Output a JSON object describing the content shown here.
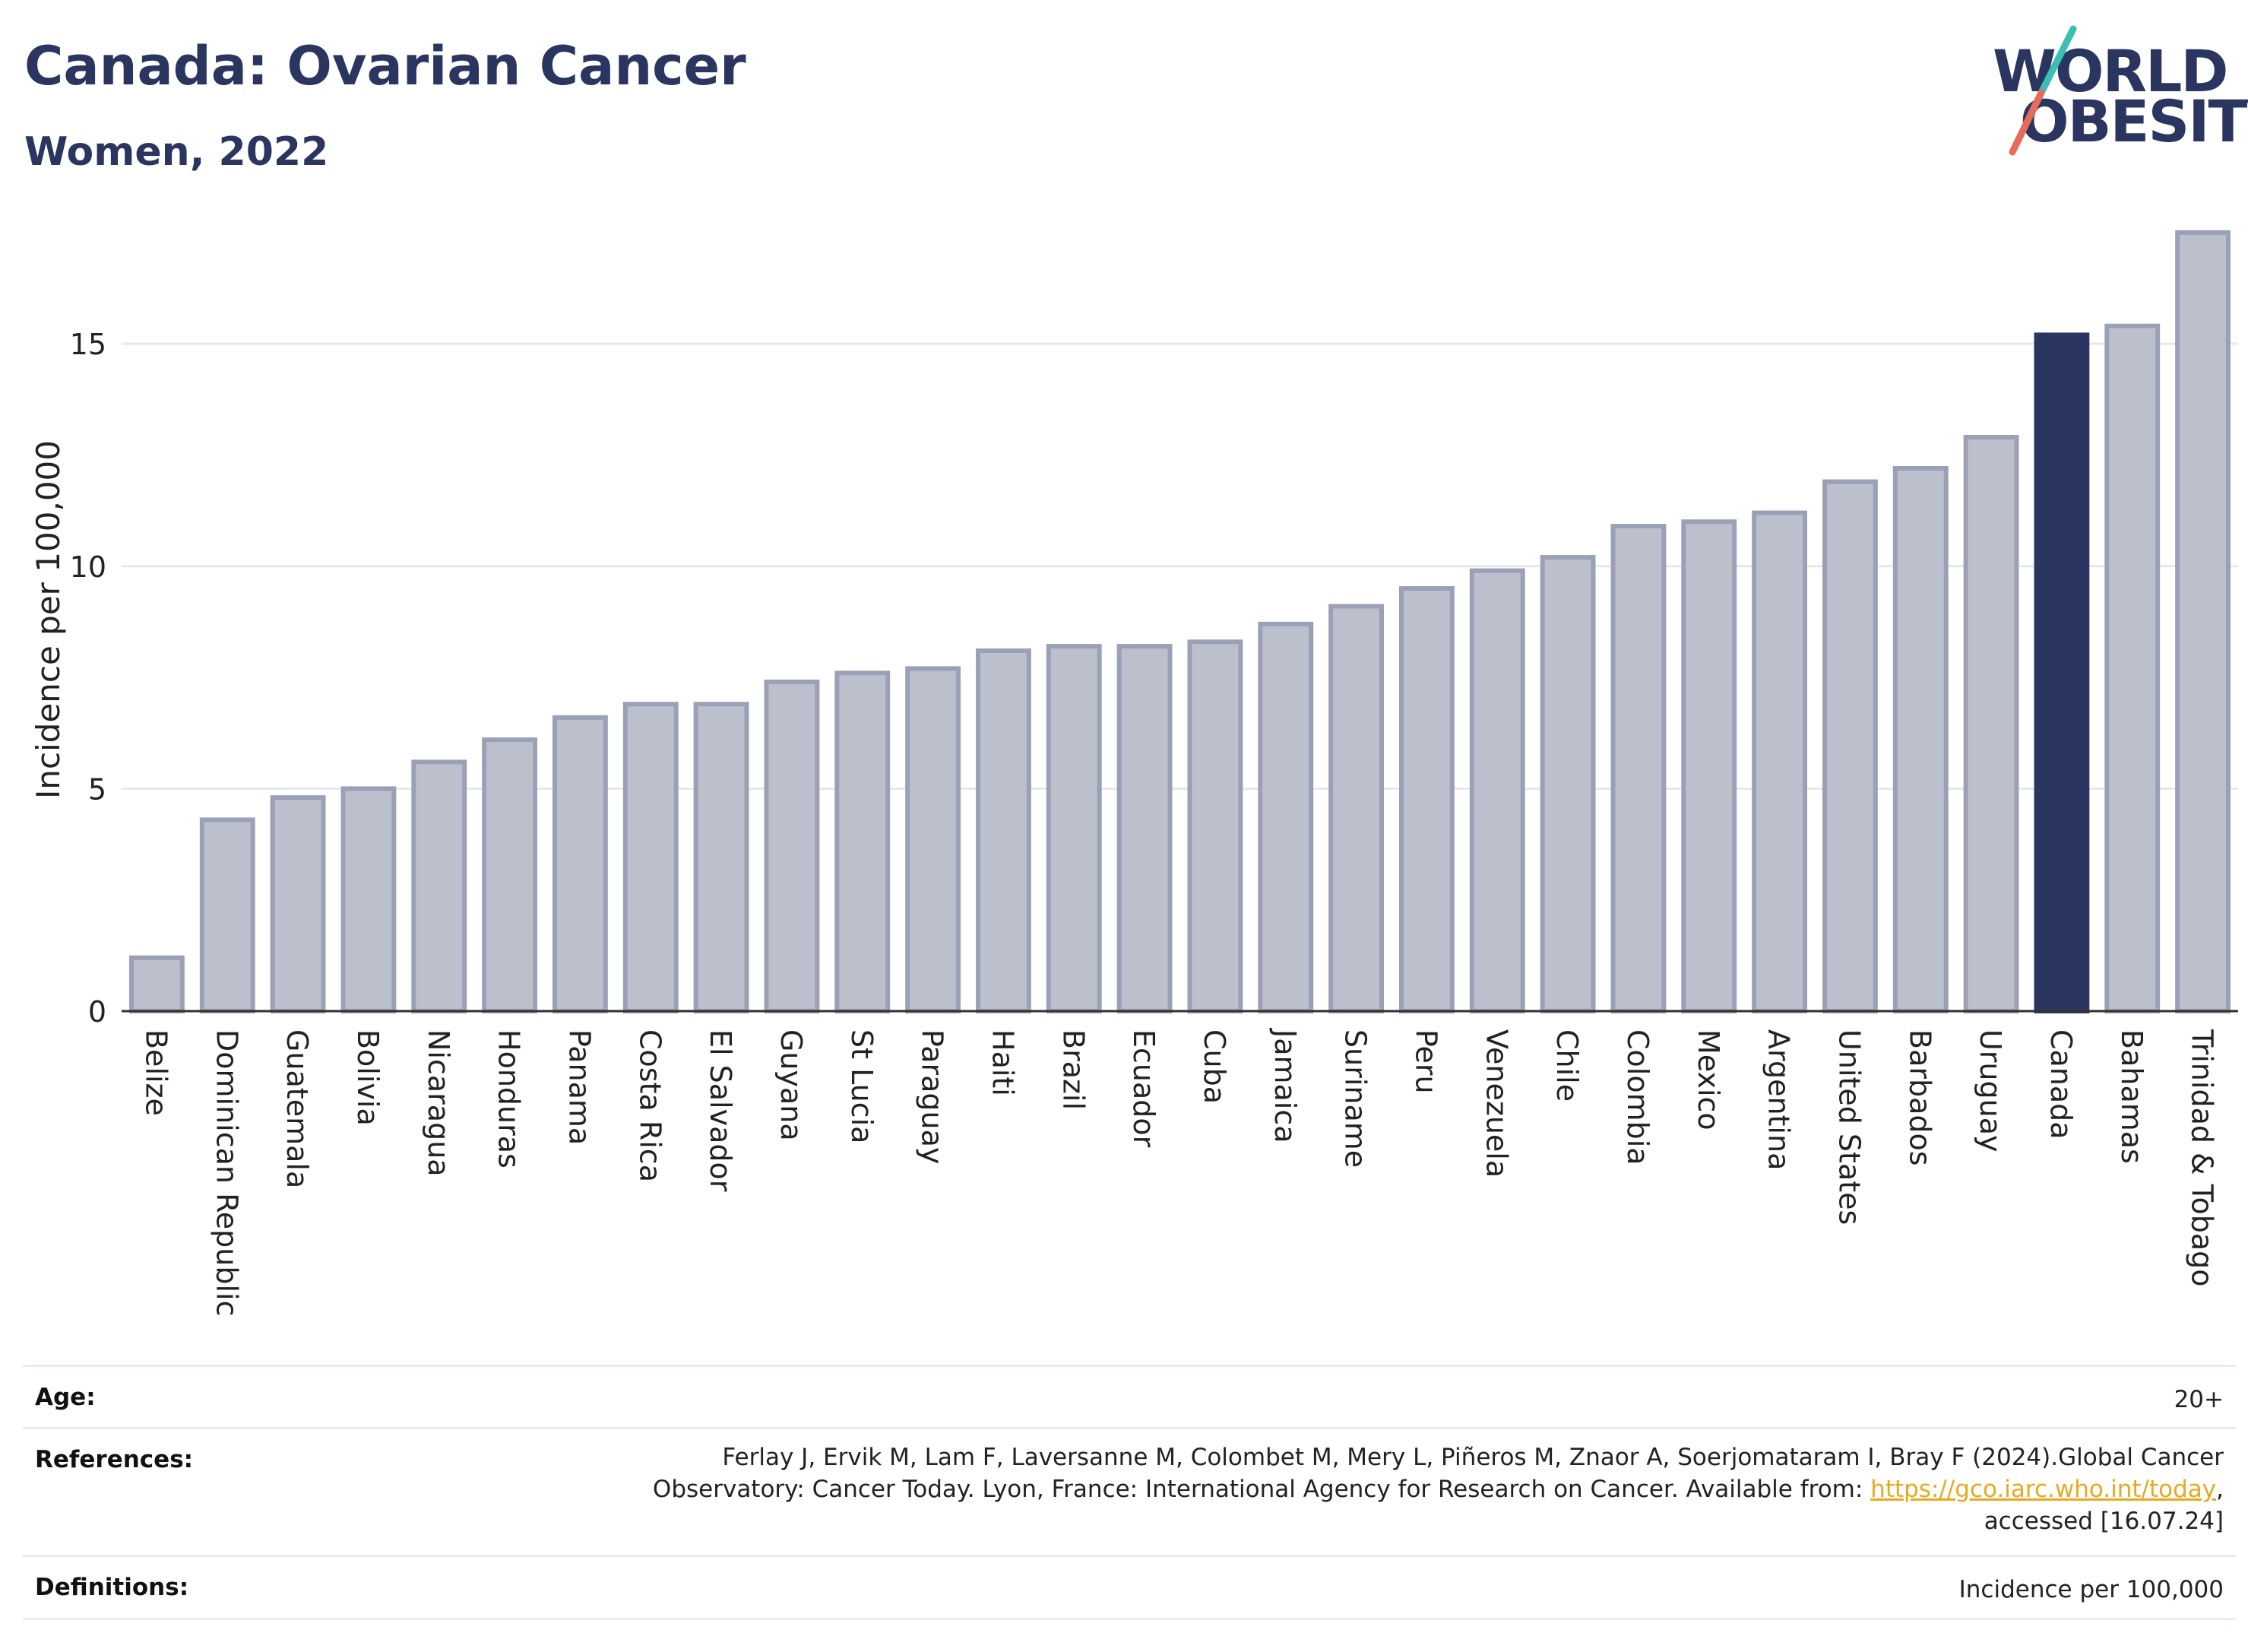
{
  "header": {
    "title": "Canada: Ovarian Cancer",
    "subtitle": "Women, 2022"
  },
  "logo": {
    "line1": "WORLD",
    "line2": "OBESITY",
    "colors": {
      "text": "#2a3560",
      "slash_teal": "#3bbfb0",
      "slash_red": "#e86a5a"
    }
  },
  "colors": {
    "highlight_bar": "#2b3561",
    "bar_fill": "#bcc0cd",
    "bar_border": "#9aa0b5",
    "grid": "#e6e8ec",
    "axis": "#333333",
    "link": "#e7a91f"
  },
  "chart_data": {
    "type": "bar",
    "ylabel": "Incidence per 100,000",
    "ylim": [
      0,
      17.6
    ],
    "yticks": [
      0,
      5,
      10,
      15
    ],
    "grid": true,
    "highlight": "Canada",
    "categories": [
      "Belize",
      "Dominican Republic",
      "Guatemala",
      "Bolivia",
      "Nicaragua",
      "Honduras",
      "Panama",
      "Costa Rica",
      "El Salvador",
      "Guyana",
      "St Lucia",
      "Paraguay",
      "Haiti",
      "Brazil",
      "Ecuador",
      "Cuba",
      "Jamaica",
      "Suriname",
      "Peru",
      "Venezuela",
      "Chile",
      "Colombia",
      "Mexico",
      "Argentina",
      "United States",
      "Barbados",
      "Uruguay",
      "Canada",
      "Bahamas",
      "Trinidad & Tobago"
    ],
    "values": [
      1.2,
      4.3,
      4.8,
      5.0,
      5.6,
      6.1,
      6.6,
      6.9,
      6.9,
      7.4,
      7.6,
      7.7,
      8.1,
      8.2,
      8.2,
      8.3,
      8.7,
      9.1,
      9.5,
      9.9,
      10.2,
      10.9,
      11.0,
      11.2,
      11.9,
      12.2,
      12.9,
      15.2,
      15.4,
      17.5
    ]
  },
  "info": {
    "age": {
      "label": "Age:",
      "value": "20+"
    },
    "references": {
      "label": "References:",
      "line1": "Ferlay J, Ervik M, Lam F, Laversanne M, Colombet M, Mery L, Piñeros M, Znaor A, Soerjomataram I, Bray F (2024).Global Cancer",
      "line2_pre": "Observatory: Cancer Today. Lyon, France: International Agency for Research on Cancer. Available from: ",
      "link": "https://gco.iarc.who.int/today",
      "line2_post": ",",
      "line3": "accessed [16.07.24]"
    },
    "definitions": {
      "label": "Definitions:",
      "value": "Incidence per 100,000"
    }
  }
}
